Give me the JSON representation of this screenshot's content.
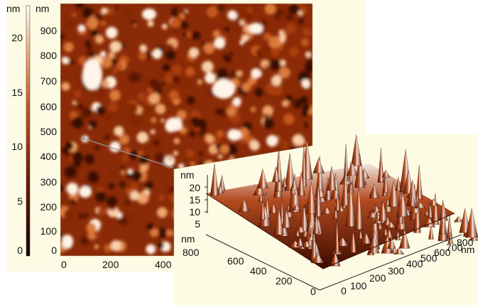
{
  "colorbar": {
    "unit": "nm",
    "ticks": [
      "20",
      "15",
      "10",
      "5",
      "0"
    ],
    "range_nm": [
      0,
      22
    ]
  },
  "afm_2d": {
    "y_unit": "nm",
    "y_ticks": [
      "900",
      "800",
      "700",
      "600",
      "500",
      "400",
      "300",
      "200",
      "100",
      "0"
    ],
    "x_ticks": [
      "0",
      "200",
      "400"
    ]
  },
  "afm_3d": {
    "z_unit": "nm",
    "z_ticks": [
      "20",
      "15",
      "10",
      "5"
    ],
    "y_unit": "nm",
    "y_ticks": [
      "800",
      "600",
      "400",
      "200",
      "0"
    ],
    "x_unit": "nm",
    "x_ticks": [
      "0",
      "100",
      "200",
      "300",
      "400",
      "500",
      "600",
      "700",
      "800",
      "900"
    ]
  },
  "colors": {
    "panel_background": "#fdfbe3",
    "colormap_dark": "#1a0000",
    "colormap_mid": "#b5400f",
    "colormap_light": "#fff3e0"
  }
}
